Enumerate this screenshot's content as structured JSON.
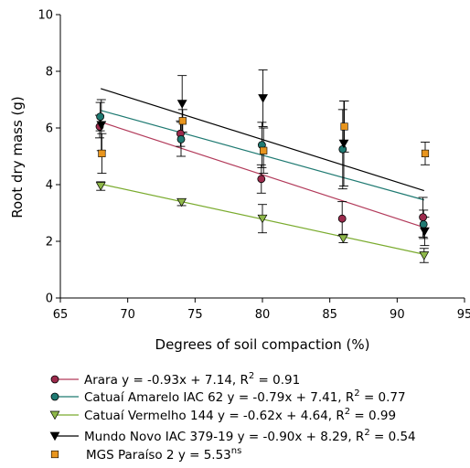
{
  "chart_data": {
    "type": "scatter",
    "xlabel": "Degrees of soil compaction (%)",
    "ylabel": "Root dry mass (g)",
    "xlim": [
      65,
      95
    ],
    "ylim": [
      0,
      10
    ],
    "xticks": [
      "65",
      "70",
      "75",
      "80",
      "85",
      "90",
      "95"
    ],
    "yticks": [
      "0",
      "2",
      "4",
      "6",
      "8",
      "10"
    ],
    "grid": false,
    "legend_position": "bottom",
    "x": [
      68,
      74,
      80,
      86,
      92
    ],
    "series": [
      {
        "name": "Arara",
        "equation": "y = -0.93x + 7.14, R",
        "r2_value": "= 0.91",
        "marker": "circle",
        "color": "#9c2a4c",
        "line_color": "#b23a5a",
        "values": [
          6.05,
          5.8,
          4.2,
          2.8,
          2.85
        ],
        "errors": [
          0.4,
          0.45,
          0.5,
          0.6,
          0.7
        ],
        "fit": {
          "slope": -0.93,
          "intercept": 7.14
        }
      },
      {
        "name": "Catuaí Amarelo IAC 62",
        "equation": "y = -0.79x + 7.41, R",
        "r2_value": "= 0.77",
        "marker": "circle",
        "color": "#1f7a72",
        "line_color": "#1f7a72",
        "values": [
          6.4,
          5.6,
          5.4,
          5.25,
          2.6
        ],
        "errors": [
          0.5,
          0.6,
          0.8,
          1.4,
          0.5
        ],
        "fit": {
          "slope": -0.79,
          "intercept": 7.41
        }
      },
      {
        "name": "Catuaí Vermelho 144",
        "equation": "y = -0.62x + 4.64, R",
        "r2_value": "= 0.99",
        "marker": "triangle-down",
        "color": "#8fb84a",
        "line_color": "#7aab2e",
        "values": [
          3.95,
          3.38,
          2.8,
          2.1,
          1.5
        ],
        "errors": [
          0.15,
          0.12,
          0.5,
          0.15,
          0.25
        ],
        "fit": {
          "slope": -0.62,
          "intercept": 4.64
        }
      },
      {
        "name": "Mundo Novo IAC 379-19",
        "equation": "y = -0.90x + 8.29, R",
        "r2_value": "= 0.54",
        "marker": "triangle-down",
        "color": "#000000",
        "line_color": "#000000",
        "values": [
          6.1,
          6.85,
          7.05,
          5.45,
          2.35
        ],
        "errors": [
          0.9,
          1.0,
          1.0,
          1.5,
          0.5
        ],
        "fit": {
          "slope": -0.9,
          "intercept": 8.29
        }
      },
      {
        "name": "MGS Paraíso 2",
        "equation": "y = 5.53",
        "r2_value": "",
        "superscript": "ns",
        "marker": "square",
        "color": "#e8951e",
        "line_color": "",
        "values": [
          5.1,
          6.25,
          5.2,
          6.05,
          5.1
        ],
        "errors": [
          0.7,
          0.4,
          0.8,
          0.9,
          0.4
        ],
        "fit": null
      }
    ],
    "r2_superscript": "2"
  }
}
